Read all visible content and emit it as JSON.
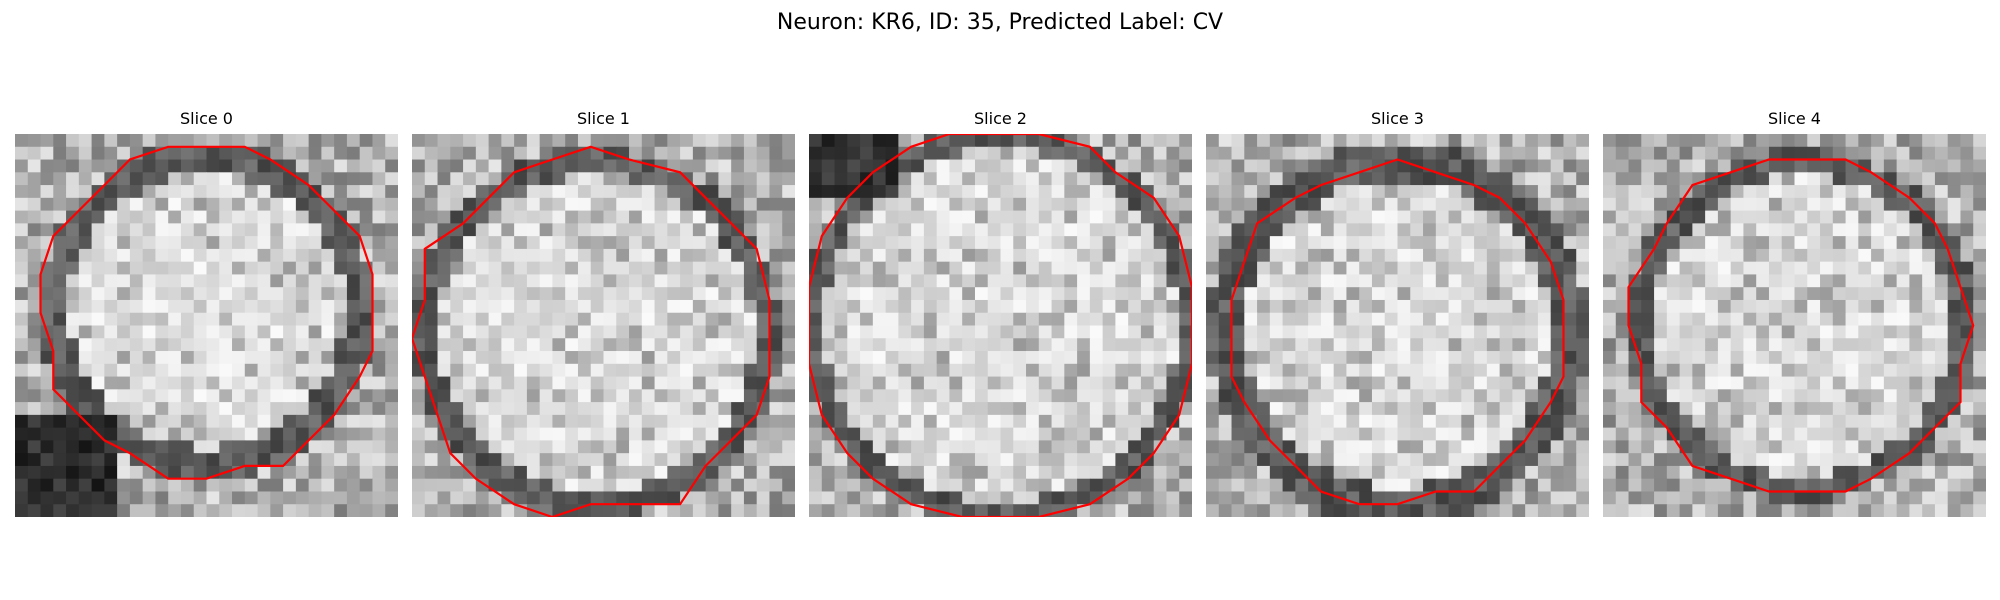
{
  "figure": {
    "title": "Neuron: KR6, ID: 35, Predicted Label: CV"
  },
  "colors": {
    "contour": "#ff0000",
    "background": "#ffffff"
  },
  "panels": [
    {
      "label": "Slice 0",
      "colormap": "grayscale",
      "overlay": "red-contour"
    },
    {
      "label": "Slice 1",
      "colormap": "grayscale",
      "overlay": "red-contour"
    },
    {
      "label": "Slice 2",
      "colormap": "grayscale",
      "overlay": "red-contour"
    },
    {
      "label": "Slice 3",
      "colormap": "grayscale",
      "overlay": "red-contour"
    },
    {
      "label": "Slice 4",
      "colormap": "grayscale",
      "overlay": "red-contour"
    }
  ]
}
